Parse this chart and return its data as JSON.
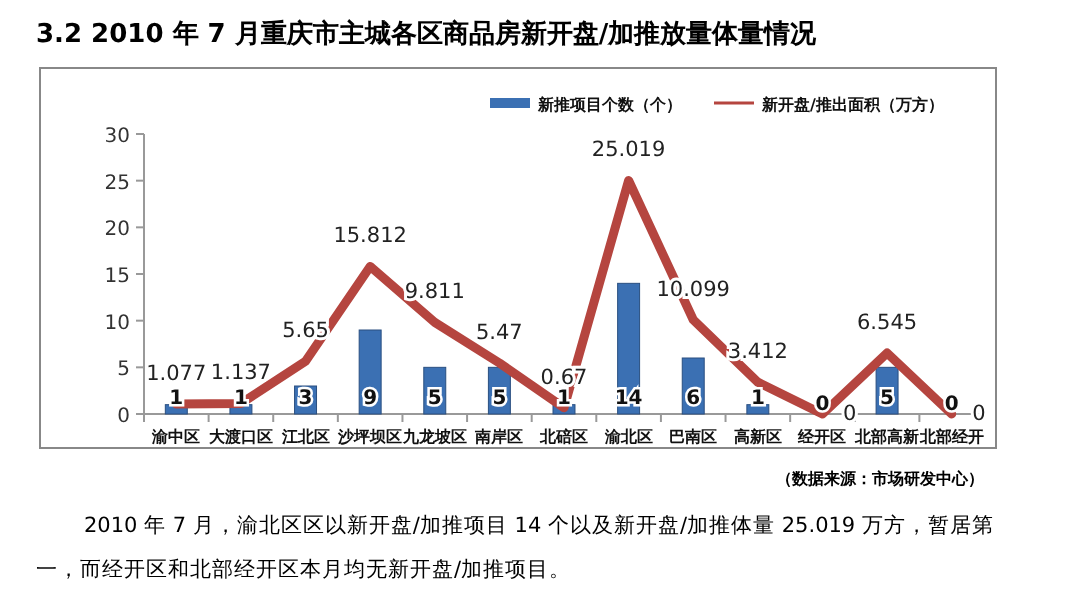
{
  "chart_data": {
    "type": "bar",
    "title": "3.2 2010 年 7 月重庆市主城各区商品房新开盘/加推放量体量情况",
    "categories": [
      "渝中区",
      "大渡口区",
      "江北区",
      "沙坪坝区",
      "九龙坡区",
      "南岸区",
      "北碚区",
      "渝北区",
      "巴南区",
      "高新区",
      "经开区",
      "北部高新",
      "北部经开"
    ],
    "series": [
      {
        "name": "新推项目个数（个）",
        "color": "#3b70b3",
        "values": [
          1,
          1,
          3,
          9,
          5,
          5,
          1,
          14,
          6,
          1,
          0,
          5,
          0
        ]
      },
      {
        "name": "新开盘/推出面积（万方）",
        "type": "line",
        "color": "#b5453f",
        "values": [
          1.077,
          1.137,
          5.65,
          15.812,
          9.811,
          5.47,
          0.67,
          25.019,
          10.099,
          3.412,
          0,
          6.545,
          0
        ]
      }
    ],
    "ylim": [
      0,
      30
    ],
    "yticks": [
      0,
      5,
      10,
      15,
      20,
      25,
      30
    ],
    "grid": false,
    "legend": "top right",
    "data_labels": true,
    "annotations": [
      "（数据来源：市场研发中心）",
      "2010 年 7 月，渝北区区以新开盘/加推项目 14 个以及新开盘/加推体量 25.019 万方，暂居第一，而经开区和北部经开区本月均无新开盘/加推项目。"
    ]
  }
}
